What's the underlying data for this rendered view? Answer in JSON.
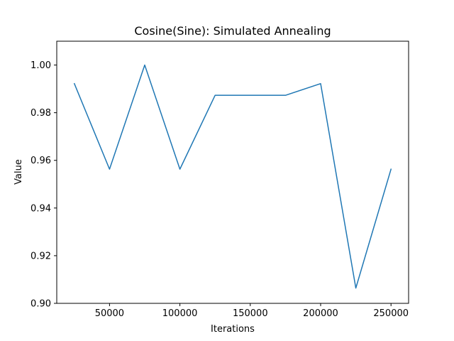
{
  "chart_data": {
    "type": "line",
    "title": "Cosine(Sine): Simulated Annealing",
    "xlabel": "Iterations",
    "ylabel": "Value",
    "xlim": [
      12500,
      262500
    ],
    "ylim": [
      0.9,
      1.01
    ],
    "xticks": [
      50000,
      100000,
      150000,
      200000,
      250000
    ],
    "xtick_labels": [
      "50000",
      "100000",
      "150000",
      "200000",
      "250000"
    ],
    "yticks": [
      0.9,
      0.92,
      0.94,
      0.96,
      0.98,
      1.0
    ],
    "ytick_labels": [
      "0.90",
      "0.92",
      "0.94",
      "0.96",
      "0.98",
      "1.00"
    ],
    "grid": false,
    "series": [
      {
        "color": "#1f77b4",
        "x": [
          25000,
          50000,
          75000,
          100000,
          125000,
          150000,
          175000,
          200000,
          225000,
          250000
        ],
        "y": [
          0.9922,
          0.9563,
          1.0,
          0.9563,
          0.9873,
          0.9873,
          0.9873,
          0.9922,
          0.9064,
          0.9563
        ]
      }
    ]
  }
}
